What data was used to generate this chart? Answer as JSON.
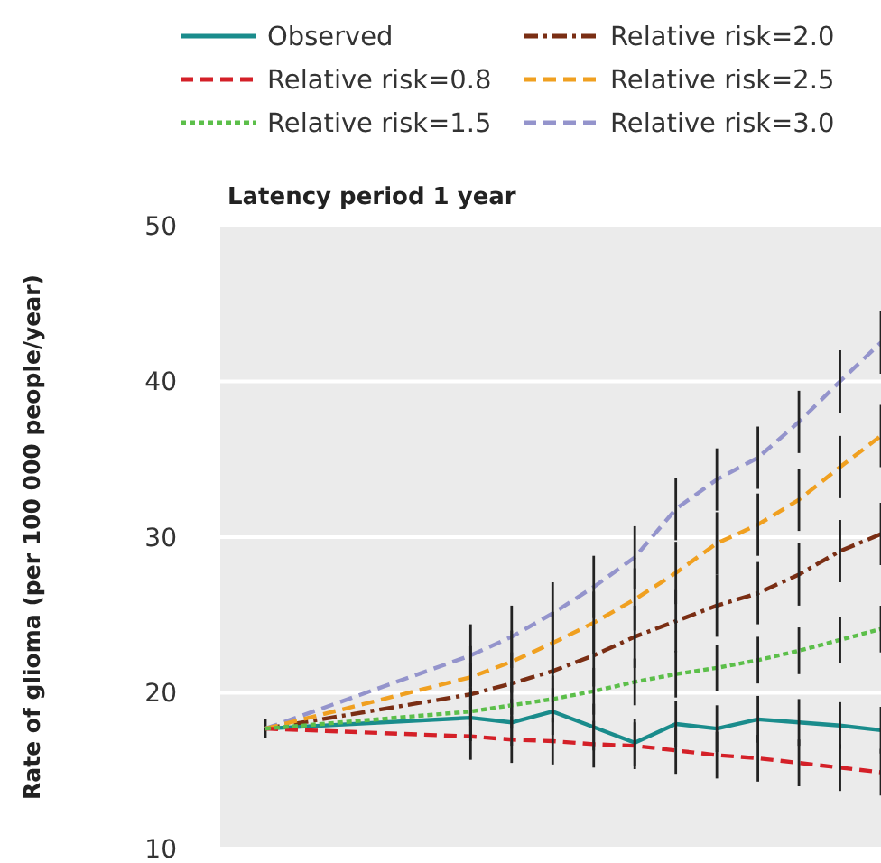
{
  "chart_data": {
    "type": "line",
    "title": "Latency period 1 year",
    "ylabel": "Rate of glioma (per 100 000 people/year)",
    "categories": [
      null,
      null,
      null,
      null,
      null,
      null,
      null,
      null,
      null,
      null,
      null,
      null,
      null,
      null,
      null,
      null
    ],
    "ylim": [
      10,
      50
    ],
    "yticks": [
      10,
      20,
      30,
      40,
      50
    ],
    "tick_labels": "y",
    "grid": "y",
    "legend": "top",
    "marker": "none",
    "series": [
      {
        "name": "Observed",
        "color": "#1a8c8c",
        "line_style": "solid",
        "values": [
          17.7,
          null,
          null,
          null,
          null,
          18.4,
          18.1,
          18.8,
          17.8,
          16.8,
          18.0,
          17.7,
          18.3,
          18.1,
          17.9,
          17.6
        ],
        "errors": [
          0.6,
          null,
          null,
          null,
          null,
          1.5,
          1.5,
          1.5,
          1.5,
          1.5,
          1.5,
          1.5,
          1.5,
          1.5,
          1.5,
          1.5
        ]
      },
      {
        "name": "Relative risk=0.8",
        "color": "#d42028",
        "line_style": "dashed",
        "values": [
          17.7,
          null,
          null,
          null,
          null,
          17.2,
          17.0,
          16.9,
          16.7,
          16.6,
          16.3,
          16.0,
          15.8,
          15.5,
          15.2,
          14.9
        ],
        "errors": [
          null,
          null,
          null,
          null,
          null,
          1.5,
          1.5,
          1.5,
          1.5,
          1.5,
          1.5,
          1.5,
          1.5,
          1.5,
          1.5,
          1.5
        ]
      },
      {
        "name": "Relative risk=1.5",
        "color": "#5cbf4a",
        "line_style": "dotted",
        "values": [
          17.7,
          null,
          null,
          null,
          null,
          18.8,
          19.2,
          19.6,
          20.1,
          20.7,
          21.2,
          21.6,
          22.1,
          22.7,
          23.4,
          24.1
        ],
        "errors": [
          null,
          null,
          null,
          null,
          null,
          1.5,
          1.5,
          1.5,
          1.5,
          1.5,
          1.5,
          1.5,
          1.5,
          1.5,
          1.5,
          1.5
        ]
      },
      {
        "name": "Relative risk=2.0",
        "color": "#7a2e14",
        "line_style": "dashdot",
        "values": [
          17.7,
          null,
          null,
          null,
          null,
          19.9,
          20.6,
          21.4,
          22.4,
          23.6,
          24.6,
          25.6,
          26.4,
          27.6,
          29.1,
          30.2
        ],
        "errors": [
          null,
          null,
          null,
          null,
          null,
          2,
          2,
          2,
          2,
          2,
          2,
          2,
          2,
          2,
          2,
          2
        ]
      },
      {
        "name": "Relative risk=2.5",
        "color": "#f0a020",
        "line_style": "dashed",
        "values": [
          17.7,
          null,
          null,
          null,
          null,
          21.0,
          22.0,
          23.2,
          24.5,
          26.0,
          27.7,
          29.6,
          30.8,
          32.4,
          34.5,
          36.5
        ],
        "errors": [
          null,
          null,
          null,
          null,
          null,
          2,
          2,
          2,
          2,
          2,
          2,
          2,
          2,
          2,
          2,
          2
        ]
      },
      {
        "name": "Relative risk=3.0",
        "color": "#9494cc",
        "line_style": "dashed",
        "values": [
          17.7,
          null,
          null,
          null,
          null,
          22.4,
          23.6,
          25.1,
          26.8,
          28.7,
          31.8,
          33.7,
          35.1,
          37.4,
          40.0,
          42.5
        ],
        "errors": [
          null,
          null,
          null,
          null,
          null,
          2,
          2,
          2,
          2,
          2,
          2,
          2,
          2,
          2,
          2,
          2
        ]
      }
    ]
  }
}
